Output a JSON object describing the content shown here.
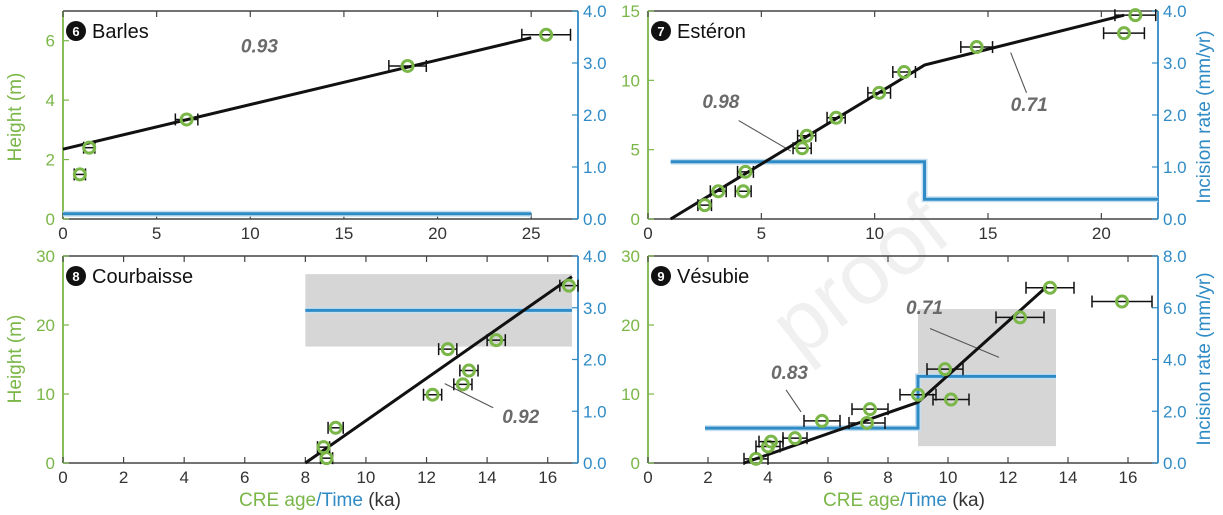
{
  "colors": {
    "green": "#7ab648",
    "blue": "#2f8bc6",
    "fit": "#111111",
    "band": "#d6d6d6",
    "text": "#333333",
    "annotation": "#6a6a6a"
  },
  "watermark": "proof",
  "axis_labels": {
    "height": "Height (m)",
    "incision_rate": "Incision rate (mm/yr)",
    "cre_age": "CRE age",
    "slash": "/",
    "time": "Time",
    "unit": " (ka)"
  },
  "chart_data": [
    {
      "type": "scatter",
      "panel": 0,
      "badge": "6",
      "title": "Barles",
      "xlim": [
        0,
        27.5
      ],
      "ylim": [
        0,
        7.0
      ],
      "y2lim": [
        0,
        4.0
      ],
      "xticks": [
        0,
        5,
        10,
        15,
        20,
        25
      ],
      "yticks": [
        0,
        2,
        4,
        6
      ],
      "y2ticks": [
        "0.0",
        "1.0",
        "2.0",
        "3.0",
        "4.0"
      ],
      "y2tickvals": [
        0,
        1,
        2,
        3,
        4
      ],
      "points": [
        {
          "x": 0.9,
          "y": 1.5,
          "err": 0.3
        },
        {
          "x": 1.4,
          "y": 2.4,
          "err": 0.3
        },
        {
          "x": 6.6,
          "y": 3.35,
          "err": 0.6
        },
        {
          "x": 18.4,
          "y": 5.15,
          "err": 1.0
        },
        {
          "x": 25.8,
          "y": 6.2,
          "err": 1.3
        }
      ],
      "fit": [
        [
          0,
          2.35
        ],
        [
          25,
          6.1
        ]
      ],
      "rate_steps": [
        [
          0,
          0.1
        ],
        [
          25,
          0.1
        ]
      ],
      "band": null,
      "annotations": [
        {
          "text": "0.93",
          "x": 9.5,
          "y": 5.6
        }
      ],
      "leaders": []
    },
    {
      "type": "scatter",
      "panel": 1,
      "badge": "7",
      "title": "Estéron",
      "xlim": [
        0,
        22.5
      ],
      "ylim": [
        0,
        15
      ],
      "y2lim": [
        0,
        4.0
      ],
      "xticks": [
        0,
        5,
        10,
        15,
        20
      ],
      "yticks": [
        0,
        5,
        10,
        15
      ],
      "y2ticks": [
        "0.0",
        "1.0",
        "2.0",
        "3.0",
        "4.0"
      ],
      "y2tickvals": [
        0,
        1,
        2,
        3,
        4
      ],
      "points": [
        {
          "x": 2.5,
          "y": 1.0,
          "err": 0.3
        },
        {
          "x": 3.1,
          "y": 2.0,
          "err": 0.35
        },
        {
          "x": 4.2,
          "y": 2.0,
          "err": 0.35
        },
        {
          "x": 4.3,
          "y": 3.4,
          "err": 0.35
        },
        {
          "x": 6.8,
          "y": 5.1,
          "err": 0.4
        },
        {
          "x": 7.0,
          "y": 6.0,
          "err": 0.4
        },
        {
          "x": 8.3,
          "y": 7.3,
          "err": 0.4
        },
        {
          "x": 10.2,
          "y": 9.1,
          "err": 0.5
        },
        {
          "x": 11.3,
          "y": 10.6,
          "err": 0.5
        },
        {
          "x": 14.5,
          "y": 12.4,
          "err": 0.7
        },
        {
          "x": 21.0,
          "y": 13.4,
          "err": 0.9
        },
        {
          "x": 21.5,
          "y": 14.7,
          "err": 0.9
        }
      ],
      "fit": [
        [
          1.0,
          0.0
        ],
        [
          12.2,
          11.1
        ],
        [
          21.0,
          14.7
        ]
      ],
      "rate_steps": [
        [
          1.0,
          1.1
        ],
        [
          12.2,
          1.1
        ],
        [
          12.2,
          0.38
        ],
        [
          22.5,
          0.38
        ]
      ],
      "band": null,
      "annotations": [
        {
          "text": "0.98",
          "x": 2.4,
          "y": 8.0
        },
        {
          "text": "0.71",
          "x": 16.0,
          "y": 7.8
        }
      ],
      "leaders": [
        [
          [
            4.0,
            7.1
          ],
          [
            6.3,
            4.9
          ]
        ],
        [
          [
            16.7,
            9.1
          ],
          [
            16.0,
            12.0
          ]
        ]
      ]
    },
    {
      "type": "scatter",
      "panel": 2,
      "badge": "8",
      "title": "Courbaisse",
      "xlim": [
        0,
        17.0
      ],
      "ylim": [
        0,
        30
      ],
      "y2lim": [
        0,
        4.0
      ],
      "xticks": [
        0,
        2,
        4,
        6,
        8,
        10,
        12,
        14,
        16
      ],
      "yticks": [
        0,
        10,
        20,
        30
      ],
      "y2ticks": [
        "0.0",
        "1.0",
        "2.0",
        "3.0",
        "4.0"
      ],
      "y2tickvals": [
        0,
        1,
        2,
        3,
        4
      ],
      "points": [
        {
          "x": 8.7,
          "y": 0.7,
          "err": 0.2
        },
        {
          "x": 8.6,
          "y": 2.3,
          "err": 0.2
        },
        {
          "x": 9.0,
          "y": 5.1,
          "err": 0.25
        },
        {
          "x": 12.2,
          "y": 9.9,
          "err": 0.3
        },
        {
          "x": 13.2,
          "y": 11.4,
          "err": 0.3
        },
        {
          "x": 13.4,
          "y": 13.4,
          "err": 0.3
        },
        {
          "x": 12.7,
          "y": 16.5,
          "err": 0.3
        },
        {
          "x": 14.3,
          "y": 17.8,
          "err": 0.3
        },
        {
          "x": 16.7,
          "y": 25.7,
          "err": 0.3
        }
      ],
      "fit": [
        [
          8.0,
          0.0
        ],
        [
          16.8,
          27.0
        ]
      ],
      "rate_steps": [
        [
          8.0,
          2.95
        ],
        [
          16.8,
          2.95
        ]
      ],
      "band": {
        "x0": 8.0,
        "x1": 16.8,
        "y0": 2.25,
        "y1": 3.65
      },
      "annotations": [
        {
          "text": "0.92",
          "x": 14.5,
          "y": 5.8
        }
      ],
      "leaders": [
        [
          [
            12.6,
            11.5
          ],
          [
            14.2,
            8.0
          ]
        ]
      ]
    },
    {
      "type": "scatter",
      "panel": 3,
      "badge": "9",
      "title": "Vésubie",
      "xlim": [
        0,
        17.0
      ],
      "ylim": [
        0,
        30
      ],
      "y2lim": [
        0,
        8.0
      ],
      "xticks": [
        0,
        2,
        4,
        6,
        8,
        10,
        12,
        14,
        16
      ],
      "yticks": [
        0,
        10,
        20,
        30
      ],
      "y2ticks": [
        "0.0",
        "2.0",
        "4.0",
        "6.0",
        "8.0"
      ],
      "y2tickvals": [
        0,
        2,
        4,
        6,
        8
      ],
      "points": [
        {
          "x": 3.6,
          "y": 0.6,
          "err": 0.4
        },
        {
          "x": 4.0,
          "y": 2.4,
          "err": 0.4
        },
        {
          "x": 4.1,
          "y": 3.1,
          "err": 0.4
        },
        {
          "x": 4.9,
          "y": 3.6,
          "err": 0.4
        },
        {
          "x": 5.8,
          "y": 6.1,
          "err": 0.6
        },
        {
          "x": 7.3,
          "y": 5.8,
          "err": 0.6
        },
        {
          "x": 7.4,
          "y": 7.8,
          "err": 0.6
        },
        {
          "x": 9.0,
          "y": 9.9,
          "err": 0.6
        },
        {
          "x": 10.1,
          "y": 9.2,
          "err": 0.6
        },
        {
          "x": 9.9,
          "y": 13.6,
          "err": 0.6
        },
        {
          "x": 12.4,
          "y": 21.1,
          "err": 0.8
        },
        {
          "x": 13.4,
          "y": 25.4,
          "err": 0.8
        },
        {
          "x": 15.8,
          "y": 23.4,
          "err": 1.0
        }
      ],
      "fit": [
        [
          3.2,
          0.0
        ],
        [
          9.0,
          8.8
        ],
        [
          13.3,
          25.6
        ]
      ],
      "rate_steps": [
        [
          1.9,
          1.35
        ],
        [
          9.0,
          1.35
        ],
        [
          9.0,
          3.35
        ],
        [
          13.6,
          3.35
        ]
      ],
      "band": {
        "x0": 9.0,
        "x1": 13.6,
        "y0": 0.65,
        "y1": 5.95
      },
      "annotations": [
        {
          "text": "0.83",
          "x": 4.1,
          "y": 12.2
        },
        {
          "text": "0.71",
          "x": 8.6,
          "y": 21.6
        }
      ],
      "leaders": [
        [
          [
            9.4,
            19.5
          ],
          [
            11.7,
            15.3
          ]
        ],
        [
          [
            4.6,
            10.6
          ],
          [
            5.1,
            7.4
          ]
        ]
      ]
    }
  ]
}
